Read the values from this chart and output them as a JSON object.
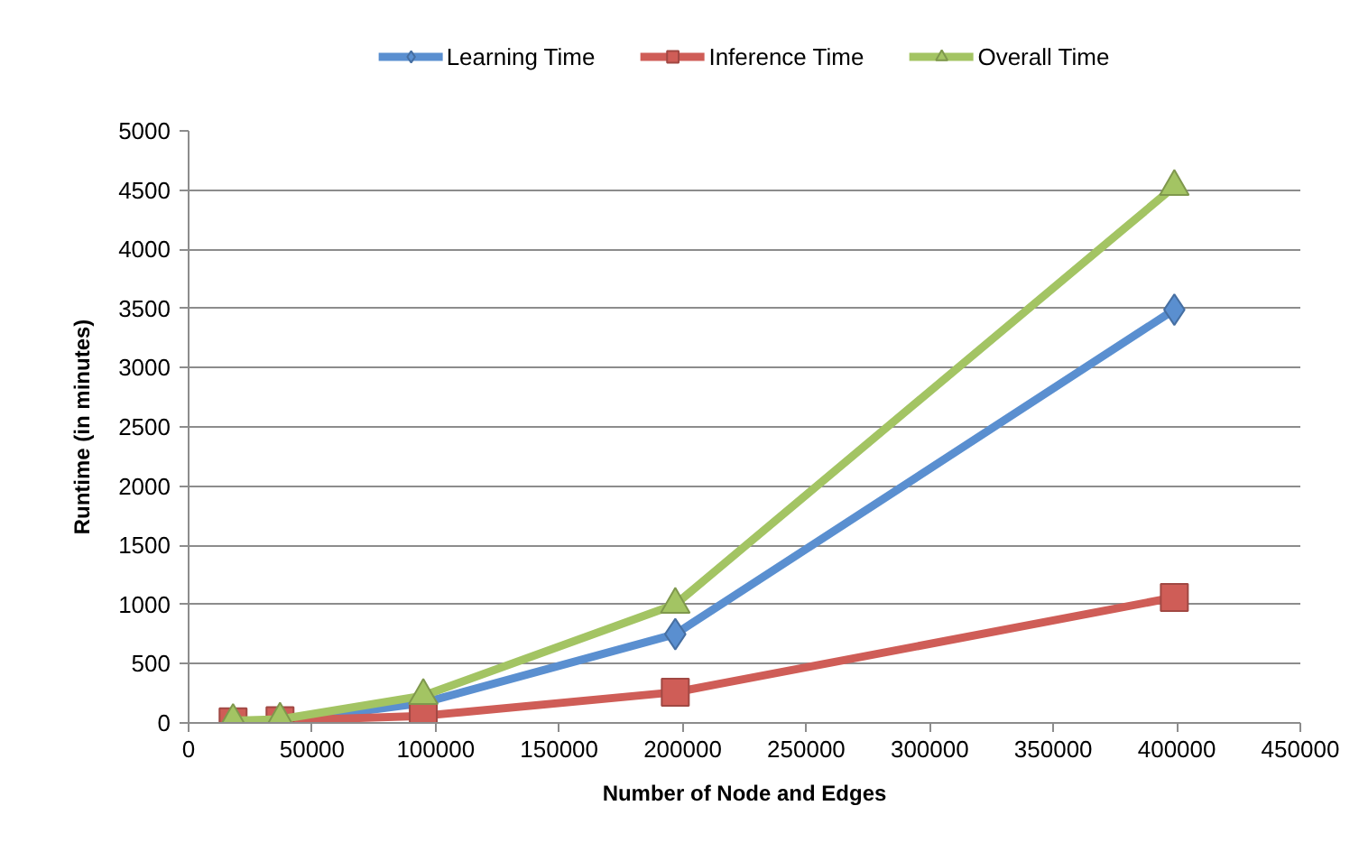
{
  "chart_data": {
    "type": "line",
    "xlabel": "Number of Node and Edges",
    "ylabel": "Runtime (in minutes)",
    "x": [
      18000,
      37000,
      95000,
      197000,
      399000
    ],
    "series": [
      {
        "name": "Learning Time",
        "color": "#5a8fd0",
        "marker": "diamond",
        "values": [
          10,
          10,
          170,
          750,
          3490
        ]
      },
      {
        "name": "Inference Time",
        "color": "#cf5d57",
        "marker": "square",
        "values": [
          10,
          20,
          60,
          260,
          1060
        ]
      },
      {
        "name": "Overall Time",
        "color": "#a3c463",
        "marker": "triangle",
        "values": [
          20,
          30,
          230,
          1000,
          4530
        ]
      }
    ],
    "xlim": [
      0,
      450000
    ],
    "xticks": [
      0,
      50000,
      100000,
      150000,
      200000,
      250000,
      300000,
      350000,
      400000,
      450000
    ],
    "ylim": [
      0,
      5000
    ],
    "yticks": [
      0,
      500,
      1000,
      1500,
      2000,
      2500,
      3000,
      3500,
      4000,
      4500,
      5000
    ],
    "grid": "y",
    "legend": "top",
    "line_style": "solid"
  }
}
